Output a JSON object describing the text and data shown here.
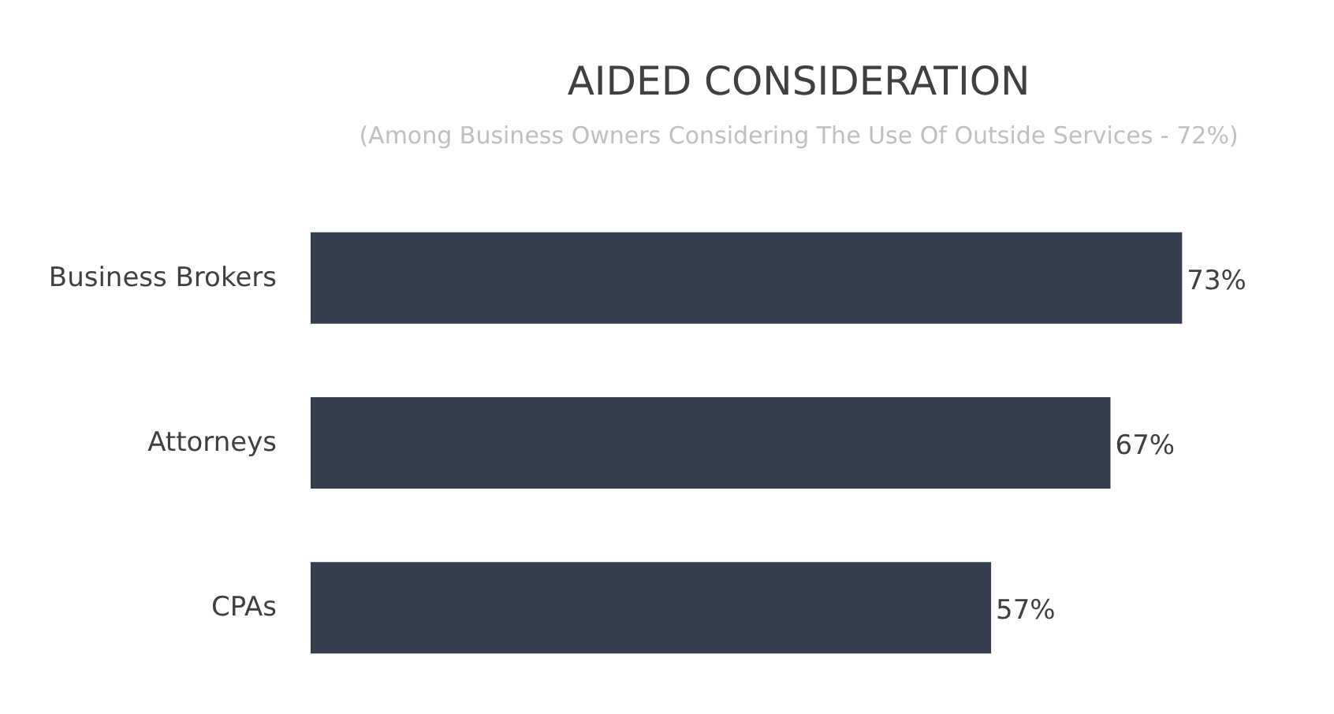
{
  "chart_data": {
    "type": "bar",
    "orientation": "horizontal",
    "title": "AIDED CONSIDERATION",
    "subtitle": "(Among Business Owners Considering The Use Of Outside Services - 72%)",
    "categories": [
      "Business Brokers",
      "Attorneys",
      "CPAs"
    ],
    "values": [
      73,
      67,
      57
    ],
    "value_labels": [
      "73%",
      "67%",
      "57%"
    ],
    "color": "#333f4c",
    "grid": false
  }
}
